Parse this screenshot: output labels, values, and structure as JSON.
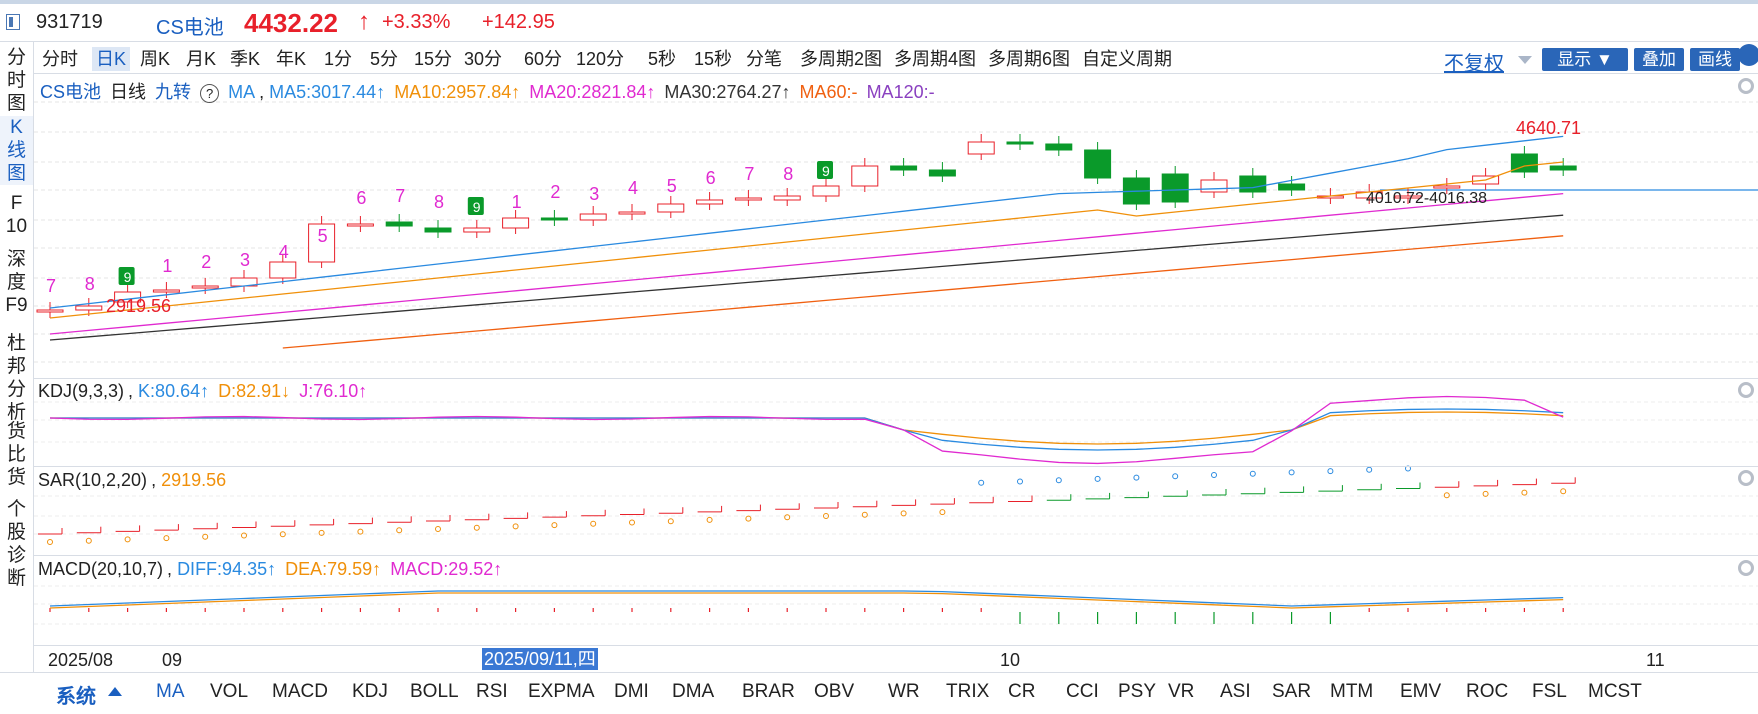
{
  "header": {
    "code": "931719",
    "name": "CS电池",
    "price": "4432.22",
    "up_arrow": "↑",
    "pct_change": "+3.33%",
    "abs_change": "+142.95",
    "up_color": "#e8202a",
    "name_color": "#1a5fc0"
  },
  "left_nav": [
    {
      "label": "分时图",
      "active": false
    },
    {
      "label": "K线图",
      "active": true
    },
    {
      "label": "F10",
      "active": false
    },
    {
      "label": "深度F9",
      "active": false
    },
    {
      "label": "杜邦分析",
      "active": false
    },
    {
      "label": "货比货",
      "active": false
    },
    {
      "label": "个股诊断",
      "active": false
    }
  ],
  "period_tabs": [
    "分时",
    "日K",
    "周K",
    "月K",
    "季K",
    "年K",
    "1分",
    "5分",
    "15分",
    "30分",
    "60分",
    "120分",
    "5秒",
    "15秒",
    "分笔",
    "多周期2图",
    "多周期4图",
    "多周期6图",
    "自定义周期"
  ],
  "period_active": "日K",
  "right_controls": {
    "fuquan": "不复权",
    "display": "显示",
    "overlay": "叠加",
    "draw": "画线"
  },
  "main_panel": {
    "name": "CS电池",
    "cycle": "日线",
    "adjust": "九转",
    "help_icon": "question-circle-icon",
    "ma_label": "MA",
    "ma5": "MA5:3017.44↑",
    "ma10": "MA10:2957.84↑",
    "ma20": "MA20:2821.84↑",
    "ma30": "MA30:2764.27↑",
    "ma60": "MA60:-",
    "ma120": "MA120:-",
    "high_label": "4640.71",
    "low_label": "2919.56",
    "range_label": "4010.72-4016.38",
    "colors": {
      "ma5": "#2a8ae0",
      "ma10": "#f0900a",
      "ma20": "#e02ad0",
      "ma30": "#333333",
      "ma60": "#f06010",
      "ma120": "#8a40c0"
    }
  },
  "kdj_panel": {
    "name": "KDJ(9,3,3)",
    "k": "K:80.64↑",
    "d": "D:82.91↓",
    "j": "J:76.10↑"
  },
  "sar_panel": {
    "name": "SAR(10,2,20)",
    "value": "2919.56"
  },
  "macd_panel": {
    "name": "MACD(20,10,7)",
    "diff": "DIFF:94.35↑",
    "dea": "DEA:79.59↑",
    "macd": "MACD:29.52↑"
  },
  "date_axis": {
    "ticks": [
      "2025/08",
      "09",
      "10",
      "11"
    ],
    "cursor": "2025/09/11,四"
  },
  "bottom_tabs": {
    "system": "系统",
    "items": [
      "MA",
      "VOL",
      "MACD",
      "KDJ",
      "BOLL",
      "RSI",
      "EXPMA",
      "DMI",
      "DMA",
      "BRAR",
      "OBV",
      "WR",
      "TRIX",
      "CR",
      "CCI",
      "PSY",
      "VR",
      "ASI",
      "SAR",
      "MTM",
      "EMV",
      "ROC",
      "FSL",
      "MCST"
    ],
    "active": "MA"
  },
  "chart_data": {
    "type": "candlestick",
    "interval": "daily",
    "period": [
      "2025/08",
      "2025/11"
    ],
    "highest": 4640.71,
    "lowest": 2919.56,
    "last_close": 4432.22,
    "td_sequential_counts": [
      7,
      8,
      9,
      1,
      2,
      3,
      4,
      5,
      6,
      7,
      8,
      9,
      1,
      2,
      3,
      4,
      5,
      6,
      7,
      8,
      9
    ],
    "ma": {
      "MA5": 3017.44,
      "MA10": 2957.84,
      "MA20": 2821.84,
      "MA30": 2764.27
    },
    "kdj": {
      "K": 80.64,
      "D": 82.91,
      "J": 76.1
    },
    "sar": 2919.56,
    "macd": {
      "DIFF": 94.35,
      "DEA": 79.59,
      "MACD": 29.52
    }
  }
}
